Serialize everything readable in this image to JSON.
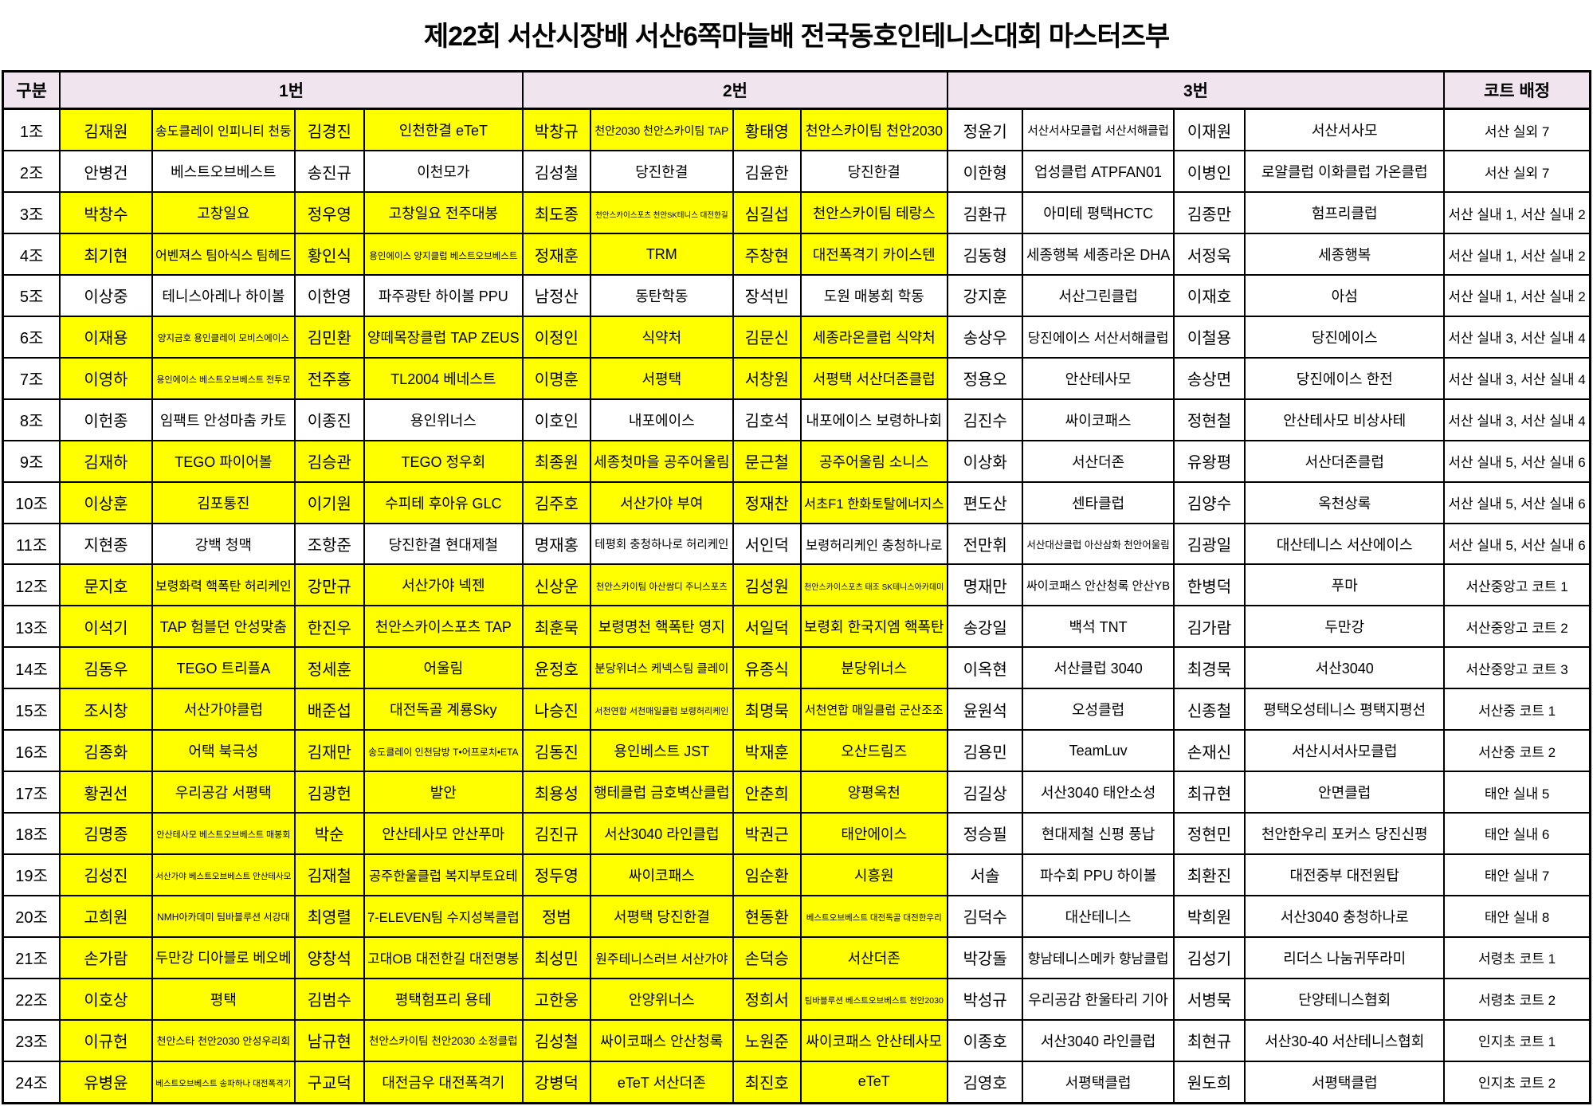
{
  "title": "제22회 서산시장배 서산6쪽마늘배 전국동호인테니스대회 마스터즈부",
  "colors": {
    "highlight": "#FFFF00",
    "header_bg": "#F0E4EF",
    "border": "#000000"
  },
  "header": {
    "group": "구분",
    "team1": "1번",
    "team2": "2번",
    "team3": "3번",
    "court": "코트 배정"
  },
  "rows": [
    {
      "group": "1조",
      "highlighted": true,
      "p1": [
        "김재원",
        "송도클레이 인피니티 천둥",
        "김경진",
        "인천한결 eTeT"
      ],
      "p2": [
        "박창규",
        "천안2030 천안스카이팀 TAP",
        "황태영",
        "천안스카이팀 천안2030"
      ],
      "p3": [
        "정윤기",
        "서산서사모클럽 서산서해클럽",
        "이재원",
        "서산서사모"
      ],
      "court": "서산 실외 7"
    },
    {
      "group": "2조",
      "highlighted": false,
      "p1": [
        "안병건",
        "베스트오브베스트",
        "송진규",
        "이천모가"
      ],
      "p2": [
        "김성철",
        "당진한결",
        "김윤한",
        "당진한결"
      ],
      "p3": [
        "이한형",
        "업성클럽 ATPFAN01",
        "이병인",
        "로얄클럽 이화클럽 가온클럽"
      ],
      "court": "서산 실외 7"
    },
    {
      "group": "3조",
      "highlighted": true,
      "p1": [
        "박창수",
        "고창일요",
        "정우영",
        "고창일요 전주대봉"
      ],
      "p2": [
        "최도종",
        "천안스카이스포츠 천안SK테니스 대전한길",
        "심길섭",
        "천안스카이팀 테랑스"
      ],
      "p3": [
        "김환규",
        "아미테 평택HCTC",
        "김종만",
        "험프리클럽"
      ],
      "court": "서산 실내 1, 서산 실내 2"
    },
    {
      "group": "4조",
      "highlighted": true,
      "p1": [
        "최기현",
        "어벤져스 팀아식스 팀헤드",
        "황인식",
        "용인에이스 양지클럽 베스트오브베스트"
      ],
      "p2": [
        "정재훈",
        "TRM",
        "주창현",
        "대전폭격기 카이스텐"
      ],
      "p3": [
        "김동형",
        "세종행복 세종라온 DHA",
        "서정욱",
        "세종행복"
      ],
      "court": "서산 실내 1, 서산 실내 2"
    },
    {
      "group": "5조",
      "highlighted": false,
      "p1": [
        "이상중",
        "테니스아레나 하이볼",
        "이한영",
        "파주광탄 하이볼 PPU"
      ],
      "p2": [
        "남정산",
        "동탄학동",
        "장석빈",
        "도원 매봉회 학동"
      ],
      "p3": [
        "강지훈",
        "서산그린클럽",
        "이재호",
        "아섬"
      ],
      "court": "서산 실내 1, 서산 실내 2"
    },
    {
      "group": "6조",
      "highlighted": true,
      "p1": [
        "이재용",
        "양지금호 용인클레이 모비스에이스",
        "김민환",
        "양떼목장클럽 TAP ZEUS"
      ],
      "p2": [
        "이정인",
        "식약처",
        "김문신",
        "세종라온클럽 식약처"
      ],
      "p3": [
        "송상우",
        "당진에이스 서산서해클럽",
        "이철용",
        "당진에이스"
      ],
      "court": "서산 실내 3, 서산 실내 4"
    },
    {
      "group": "7조",
      "highlighted": true,
      "p1": [
        "이영하",
        "용인에이스 베스트오브베스트 전투모",
        "전주홍",
        "TL2004 베네스트"
      ],
      "p2": [
        "이명훈",
        "서평택",
        "서창원",
        "서평택 서산더존클럽"
      ],
      "p3": [
        "정용오",
        "안산테사모",
        "송상면",
        "당진에이스 한전"
      ],
      "court": "서산 실내 3, 서산 실내 4"
    },
    {
      "group": "8조",
      "highlighted": false,
      "p1": [
        "이헌종",
        "임팩트 안성마춤 카토",
        "이종진",
        "용인위너스"
      ],
      "p2": [
        "이호인",
        "내포에이스",
        "김호석",
        "내포에이스 보령하나회"
      ],
      "p3": [
        "김진수",
        "싸이코패스",
        "정현철",
        "안산테사모 비상사테"
      ],
      "court": "서산 실내 3, 서산 실내 4"
    },
    {
      "group": "9조",
      "highlighted": true,
      "p1": [
        "김재하",
        "TEGO 파이어볼",
        "김승관",
        "TEGO 정우회"
      ],
      "p2": [
        "최종원",
        "세종첫마을 공주어울림",
        "문근철",
        "공주어울림 소니스"
      ],
      "p3": [
        "이상화",
        "서산더존",
        "유왕평",
        "서산더존클럽"
      ],
      "court": "서산 실내 5, 서산 실내 6"
    },
    {
      "group": "10조",
      "highlighted": true,
      "p1": [
        "이상훈",
        "김포통진",
        "이기원",
        "수피테 후아유 GLC"
      ],
      "p2": [
        "김주호",
        "서산가야 부여",
        "정재찬",
        "서초F1 한화토탈에너지스"
      ],
      "p3": [
        "편도산",
        "센타클럽",
        "김양수",
        "옥천상록"
      ],
      "court": "서산 실내 5, 서산 실내 6"
    },
    {
      "group": "11조",
      "highlighted": false,
      "p1": [
        "지현종",
        "강백 청맥",
        "조항준",
        "당진한결 현대제철"
      ],
      "p2": [
        "명재홍",
        "테평회 충청하나로 허리케인",
        "서인덕",
        "보령허리케인 충청하나로"
      ],
      "p3": [
        "전만휘",
        "서산대산클럽 아산삼화 천안어울림",
        "김광일",
        "대산테니스 서산에이스"
      ],
      "court": "서산 실내 5, 서산 실내 6"
    },
    {
      "group": "12조",
      "highlighted": true,
      "p1": [
        "문지호",
        "보령화력 핵폭탄 허리케인",
        "강만규",
        "서산가야 넥젠"
      ],
      "p2": [
        "신상운",
        "천안스카이팀 아산쌈디 주니스포츠",
        "김성원",
        "천안스카이스포츠 태조 SK테니스아카데미"
      ],
      "p3": [
        "명재만",
        "싸이코패스 안산청록 안산YB",
        "한병덕",
        "푸마"
      ],
      "court": "서산중앙고 코트 1"
    },
    {
      "group": "13조",
      "highlighted": true,
      "p1": [
        "이석기",
        "TAP 험블던 안성맞춤",
        "한진우",
        "천안스카이스포츠 TAP"
      ],
      "p2": [
        "최훈묵",
        "보령명천 핵폭탄 영지",
        "서일덕",
        "보령회 한국지엠 핵폭탄"
      ],
      "p3": [
        "송강일",
        "백석 TNT",
        "김가람",
        "두만강"
      ],
      "court": "서산중앙고 코트 2"
    },
    {
      "group": "14조",
      "highlighted": true,
      "p1": [
        "김동우",
        "TEGO 트리플A",
        "정세훈",
        "어울림"
      ],
      "p2": [
        "윤정호",
        "분당위너스 케넥스팀 클레이",
        "유종식",
        "분당위너스"
      ],
      "p3": [
        "이옥현",
        "서산클럽 3040",
        "최경묵",
        "서산3040"
      ],
      "court": "서산중앙고 코트 3"
    },
    {
      "group": "15조",
      "highlighted": true,
      "p1": [
        "조시창",
        "서산가야클럽",
        "배준섭",
        "대전독골 계룡Sky"
      ],
      "p2": [
        "나승진",
        "서천연합 서천매일클럽 보령허리케인",
        "최명묵",
        "서천연합 매일클럽 군산조조"
      ],
      "p3": [
        "윤원석",
        "오성클럽",
        "신종철",
        "평택오성테니스 평택지평선"
      ],
      "court": "서산중 코트 1"
    },
    {
      "group": "16조",
      "highlighted": true,
      "p1": [
        "김종화",
        "어택 북극성",
        "김재만",
        "송도클레이 인천담방 T•어프로치•ETA"
      ],
      "p2": [
        "김동진",
        "용인베스트 JST",
        "박재훈",
        "오산드림즈"
      ],
      "p3": [
        "김용민",
        "TeamLuv",
        "손재신",
        "서산시서사모클럽"
      ],
      "court": "서산중 코트 2"
    },
    {
      "group": "17조",
      "highlighted": true,
      "p1": [
        "황권선",
        "우리공감 서평택",
        "김광헌",
        "발안"
      ],
      "p2": [
        "최용성",
        "행테클럽 금호벽산클럽",
        "안춘희",
        "양평옥천"
      ],
      "p3": [
        "김길상",
        "서산3040 태안소성",
        "최규현",
        "안면클럽"
      ],
      "court": "태안 실내 5"
    },
    {
      "group": "18조",
      "highlighted": true,
      "p1": [
        "김명종",
        "안산테사모 베스트오브베스트 매봉회",
        "박순",
        "안산테사모 안산푸마"
      ],
      "p2": [
        "김진규",
        "서산3040 라인클럽",
        "박권근",
        "태안에이스"
      ],
      "p3": [
        "정승필",
        "현대제철 신평 풍납",
        "정현민",
        "천안한우리 포커스 당진신평"
      ],
      "court": "태안 실내 6"
    },
    {
      "group": "19조",
      "highlighted": true,
      "p1": [
        "김성진",
        "서산가야 베스트오브베스트 안산테사모",
        "김재철",
        "공주한울클럽 복지부토요테"
      ],
      "p2": [
        "정두영",
        "싸이코패스",
        "임순환",
        "시흥원"
      ],
      "p3": [
        "서솔",
        "파수회 PPU 하이볼",
        "최환진",
        "대전중부 대전원탑"
      ],
      "court": "태안 실내 7"
    },
    {
      "group": "20조",
      "highlighted": true,
      "p1": [
        "고희원",
        "NMH아카데미 팀바블루션 서강대",
        "최영렬",
        "7-ELEVEN팀 수지성복클럽"
      ],
      "p2": [
        "정범",
        "서평택 당진한결",
        "현동환",
        "베스트오브베스트 대전독골 대전한우리"
      ],
      "p3": [
        "김덕수",
        "대산테니스",
        "박희원",
        "서산3040 충청하나로"
      ],
      "court": "태안 실내 8"
    },
    {
      "group": "21조",
      "highlighted": true,
      "p1": [
        "손가람",
        "두만강 디아블로 베오베",
        "양창석",
        "고대OB 대전한길 대전명봉"
      ],
      "p2": [
        "최성민",
        "원주테니스러브 서산가야",
        "손덕승",
        "서산더존"
      ],
      "p3": [
        "박강돌",
        "향남테니스메카 향남클럽",
        "김성기",
        "리더스 나눔귀뚜라미"
      ],
      "court": "서령초 코트 1"
    },
    {
      "group": "22조",
      "highlighted": true,
      "p1": [
        "이호상",
        "평택",
        "김범수",
        "평택험프리 용테"
      ],
      "p2": [
        "고한웅",
        "안양위너스",
        "정희서",
        "팀바블루션 베스트오브베스트 천안2030"
      ],
      "p3": [
        "박성규",
        "우리공감 한울타리 기아",
        "서병묵",
        "단양테니스협회"
      ],
      "court": "서령초 코트 2"
    },
    {
      "group": "23조",
      "highlighted": true,
      "p1": [
        "이규헌",
        "천안스타 천안2030 안성우리회",
        "남규현",
        "천안스카이팀 천안2030 소정클럽"
      ],
      "p2": [
        "김성철",
        "싸이코패스 안산청록",
        "노원준",
        "싸이코패스 안산테사모"
      ],
      "p3": [
        "이종호",
        "서산3040 라인클럽",
        "최현규",
        "서산30-40 서산테니스협회"
      ],
      "court": "인지초 코트 1"
    },
    {
      "group": "24조",
      "highlighted": true,
      "p1": [
        "유병윤",
        "베스트오브베스트 송파하나 대전폭격기",
        "구교덕",
        "대전금우 대전폭격기"
      ],
      "p2": [
        "강병덕",
        "eTeT 서산더존",
        "최진호",
        "eTeT"
      ],
      "p3": [
        "김영호",
        "서평택클럽",
        "원도희",
        "서평택클럽"
      ],
      "court": "인지초 코트 2"
    }
  ]
}
